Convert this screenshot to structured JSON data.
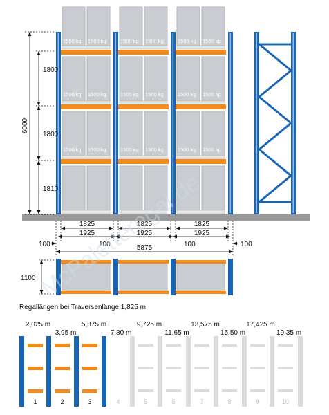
{
  "front_view": {
    "height_total": "6000",
    "level_heights": [
      "1800",
      "1800",
      "1810"
    ],
    "load_label": "1500 kg",
    "beam_length": "1825",
    "bay_width": "1925",
    "offset": "100",
    "total_length": "5875"
  },
  "depth_view": {
    "depth": "1100"
  },
  "lengths_section": {
    "caption": "Regallängen bei Traversenlänge 1,825 m",
    "lengths": [
      "2,025 m",
      "3,95 m",
      "5,875 m",
      "7,80 m",
      "9,725 m",
      "11,65 m",
      "13,575 m",
      "15,50 m",
      "17,425 m",
      "19,35 m"
    ],
    "bay_numbers": [
      "1",
      "2",
      "3",
      "4",
      "5",
      "6",
      "7",
      "8",
      "9",
      "10"
    ],
    "active_bays": 3
  },
  "watermark": "McPaletteregal.de",
  "colors": {
    "upright": "#1a64b4",
    "beam": "#f28a1c",
    "floor": "#9a9a9a",
    "box": "#c9ccd1",
    "inactive": "#dcdcdc"
  }
}
